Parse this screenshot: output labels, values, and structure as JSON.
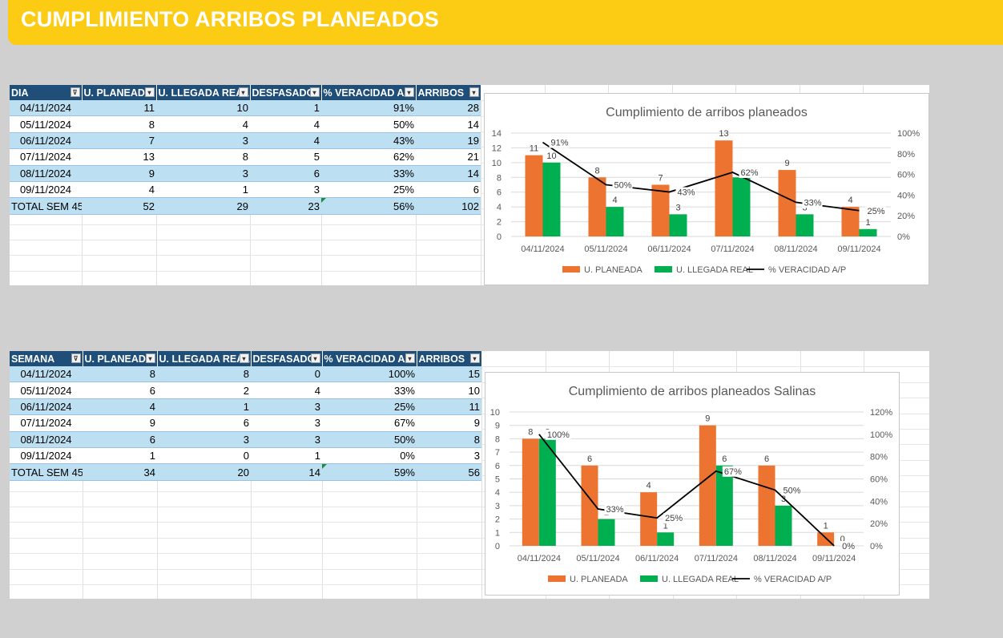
{
  "header": {
    "title": "CUMPLIMIENTO ARRIBOS PLANEADOS"
  },
  "colors": {
    "banner": "#fccc14",
    "header_bg": "#1f4e78",
    "band": "#bcdff2",
    "orange": "#ed7330",
    "green": "#00b050"
  },
  "table1": {
    "headers": [
      "DIA",
      "U. PLANEADA",
      "U. LLEGADA REAL",
      "DESFASADO",
      "% VERACIDAD A/P",
      "ARRIBOS"
    ],
    "rows": [
      [
        "04/11/2024",
        "11",
        "10",
        "1",
        "91%",
        "28"
      ],
      [
        "05/11/2024",
        "8",
        "4",
        "4",
        "50%",
        "14"
      ],
      [
        "06/11/2024",
        "7",
        "3",
        "4",
        "43%",
        "19"
      ],
      [
        "07/11/2024",
        "13",
        "8",
        "5",
        "62%",
        "21"
      ],
      [
        "08/11/2024",
        "9",
        "3",
        "6",
        "33%",
        "14"
      ],
      [
        "09/11/2024",
        "4",
        "1",
        "3",
        "25%",
        "6"
      ]
    ],
    "total": [
      "TOTAL SEM 45",
      "52",
      "29",
      "23",
      "56%",
      "102"
    ]
  },
  "table2": {
    "headers": [
      "SEMANA",
      "U. PLANEADA",
      "U. LLEGADA REAL",
      "DESFASADO",
      "% VERACIDAD A/P",
      "ARRIBOS"
    ],
    "rows": [
      [
        "04/11/2024",
        "8",
        "8",
        "0",
        "100%",
        "15"
      ],
      [
        "05/11/2024",
        "6",
        "2",
        "4",
        "33%",
        "10"
      ],
      [
        "06/11/2024",
        "4",
        "1",
        "3",
        "25%",
        "11"
      ],
      [
        "07/11/2024",
        "9",
        "6",
        "3",
        "67%",
        "9"
      ],
      [
        "08/11/2024",
        "6",
        "3",
        "3",
        "50%",
        "8"
      ],
      [
        "09/11/2024",
        "1",
        "0",
        "1",
        "0%",
        "3"
      ]
    ],
    "total": [
      "TOTAL SEM 45",
      "34",
      "20",
      "14",
      "59%",
      "56"
    ]
  },
  "chart_data": [
    {
      "type": "bar",
      "title": "Cumplimiento de arribos planeados",
      "categories": [
        "04/11/2024",
        "05/11/2024",
        "06/11/2024",
        "07/11/2024",
        "08/11/2024",
        "09/11/2024"
      ],
      "series": [
        {
          "name": "U. PLANEADA",
          "type": "bar",
          "color": "#ed7330",
          "values": [
            11,
            8,
            7,
            13,
            9,
            4
          ]
        },
        {
          "name": "U. LLEGADA REAL",
          "type": "bar",
          "color": "#00b050",
          "values": [
            10,
            4,
            3,
            8,
            3,
            1
          ]
        },
        {
          "name": "% VERACIDAD A/P",
          "type": "line",
          "axis": "secondary",
          "color": "#000000",
          "values": [
            91,
            50,
            43,
            62,
            33,
            25
          ]
        }
      ],
      "ylim": [
        0,
        14
      ],
      "yticks": [
        0,
        2,
        4,
        6,
        8,
        10,
        12,
        14
      ],
      "y2lim": [
        0,
        100
      ],
      "y2ticks": [
        0,
        20,
        40,
        60,
        80,
        100
      ],
      "grid": true,
      "legend": "bottom"
    },
    {
      "type": "bar",
      "title": "Cumplimiento de arribos planeados Salinas",
      "categories": [
        "04/11/2024",
        "05/11/2024",
        "06/11/2024",
        "07/11/2024",
        "08/11/2024",
        "09/11/2024"
      ],
      "series": [
        {
          "name": "U. PLANEADA",
          "type": "bar",
          "color": "#ed7330",
          "values": [
            8,
            6,
            4,
            9,
            6,
            1
          ]
        },
        {
          "name": "U. LLEGADA REAL",
          "type": "bar",
          "color": "#00b050",
          "values": [
            8,
            2,
            1,
            6,
            3,
            0
          ]
        },
        {
          "name": "% VERACIDAD A/P",
          "type": "line",
          "axis": "secondary",
          "color": "#000000",
          "values": [
            100,
            33,
            25,
            67,
            50,
            0
          ]
        }
      ],
      "ylim": [
        0,
        10
      ],
      "yticks": [
        0,
        1,
        2,
        3,
        4,
        5,
        6,
        7,
        8,
        9,
        10
      ],
      "y2lim": [
        0,
        120
      ],
      "y2ticks": [
        0,
        20,
        40,
        60,
        80,
        100,
        120
      ],
      "grid": true,
      "legend": "bottom"
    }
  ]
}
